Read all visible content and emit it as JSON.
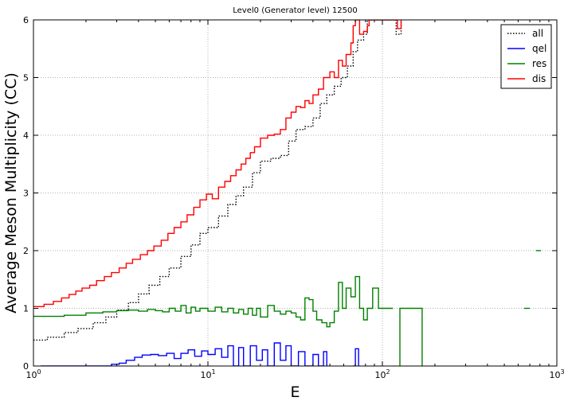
{
  "chart_data": {
    "type": "line",
    "title": "Level0 (Generator level) 12500",
    "xlabel": "E",
    "ylabel": "Average Meson Multiplicity (CC)",
    "xscale": "log",
    "xlim": [
      1,
      1000
    ],
    "ylim": [
      0,
      6
    ],
    "grid": true,
    "legend_position": "top-right",
    "x_ticks": [
      {
        "value": 1,
        "base": "10",
        "exp": "0"
      },
      {
        "value": 10,
        "base": "10",
        "exp": "1"
      },
      {
        "value": 100,
        "base": "10",
        "exp": "2"
      },
      {
        "value": 1000,
        "base": "10",
        "exp": "3"
      }
    ],
    "y_ticks": [
      0,
      1,
      2,
      3,
      4,
      5,
      6
    ],
    "series": [
      {
        "name": "all",
        "color": "#000000",
        "style": "dotted",
        "segments": [
          [
            [
              1.0,
              0.45
            ],
            [
              1.2,
              0.5
            ],
            [
              1.5,
              0.58
            ],
            [
              1.8,
              0.65
            ],
            [
              2.2,
              0.75
            ],
            [
              2.6,
              0.85
            ],
            [
              3.0,
              0.97
            ],
            [
              3.5,
              1.1
            ],
            [
              4.0,
              1.25
            ],
            [
              4.6,
              1.4
            ],
            [
              5.3,
              1.55
            ],
            [
              6.0,
              1.7
            ],
            [
              7.0,
              1.9
            ],
            [
              8.0,
              2.1
            ],
            [
              9.0,
              2.3
            ],
            [
              10.0,
              2.4
            ],
            [
              11.5,
              2.6
            ],
            [
              13.0,
              2.8
            ],
            [
              14.5,
              2.95
            ],
            [
              16.0,
              3.1
            ],
            [
              18.0,
              3.35
            ],
            [
              20.0,
              3.55
            ],
            [
              23.0,
              3.6
            ],
            [
              26.0,
              3.65
            ],
            [
              29.0,
              3.9
            ],
            [
              32.0,
              4.1
            ],
            [
              36.0,
              4.15
            ],
            [
              40.0,
              4.3
            ],
            [
              44.0,
              4.55
            ],
            [
              48.0,
              4.7
            ],
            [
              53.0,
              4.85
            ],
            [
              58.0,
              5.0
            ],
            [
              63.0,
              5.2
            ],
            [
              68.0,
              5.45
            ],
            [
              72.0,
              5.65
            ],
            [
              78.0,
              5.75
            ],
            [
              82.0,
              6.0
            ],
            [
              96.0,
              6.0
            ],
            [
              120.0,
              5.75
            ],
            [
              128.0,
              6.0
            ]
          ]
        ]
      },
      {
        "name": "qel",
        "color": "#0000ff",
        "style": "solid",
        "segments": [
          [
            [
              1.1,
              0.0
            ],
            [
              2.5,
              0.0
            ],
            [
              2.8,
              0.03
            ],
            [
              3.1,
              0.05
            ],
            [
              3.4,
              0.1
            ],
            [
              3.8,
              0.15
            ],
            [
              4.2,
              0.19
            ],
            [
              4.7,
              0.2
            ],
            [
              5.2,
              0.18
            ],
            [
              5.8,
              0.22
            ],
            [
              6.4,
              0.13
            ],
            [
              7.0,
              0.22
            ],
            [
              7.7,
              0.28
            ],
            [
              8.4,
              0.17
            ],
            [
              9.2,
              0.26
            ],
            [
              10.0,
              0.2
            ],
            [
              11.0,
              0.3
            ],
            [
              12.0,
              0.15
            ],
            [
              13.0,
              0.35
            ],
            [
              14.0,
              0.0
            ],
            [
              15.0,
              0.32
            ],
            [
              16.0,
              0.0
            ],
            [
              17.5,
              0.35
            ],
            [
              19.0,
              0.1
            ],
            [
              20.5,
              0.28
            ],
            [
              22.0,
              0.0
            ],
            [
              24.0,
              0.4
            ],
            [
              26.0,
              0.1
            ],
            [
              28.0,
              0.35
            ],
            [
              30.0,
              0.0
            ],
            [
              33.0,
              0.25
            ],
            [
              36.0,
              0.0
            ],
            [
              40.0,
              0.2
            ],
            [
              43.0,
              0.0
            ],
            [
              46.0,
              0.25
            ],
            [
              48.0,
              0.0
            ]
          ],
          [
            [
              68.0,
              0.0
            ],
            [
              70.0,
              0.3
            ],
            [
              73.0,
              0.0
            ]
          ]
        ]
      },
      {
        "name": "res",
        "color": "#008000",
        "style": "solid",
        "segments": [
          [
            [
              1.0,
              0.86
            ],
            [
              1.5,
              0.88
            ],
            [
              2.0,
              0.92
            ],
            [
              2.5,
              0.94
            ],
            [
              3.0,
              0.96
            ],
            [
              3.5,
              0.97
            ],
            [
              4.0,
              0.95
            ],
            [
              4.5,
              0.98
            ],
            [
              5.0,
              0.96
            ],
            [
              5.5,
              0.94
            ],
            [
              6.0,
              1.0
            ],
            [
              6.5,
              0.95
            ],
            [
              7.0,
              1.05
            ],
            [
              7.5,
              0.92
            ],
            [
              8.0,
              1.02
            ],
            [
              8.5,
              0.95
            ],
            [
              9.0,
              1.0
            ],
            [
              10.0,
              0.95
            ],
            [
              11.0,
              1.02
            ],
            [
              12.0,
              0.94
            ],
            [
              13.0,
              1.0
            ],
            [
              14.0,
              0.92
            ],
            [
              15.0,
              0.98
            ],
            [
              16.0,
              0.9
            ],
            [
              17.0,
              1.0
            ],
            [
              18.0,
              0.88
            ],
            [
              19.0,
              1.0
            ],
            [
              20.0,
              0.85
            ],
            [
              22.0,
              1.05
            ],
            [
              24.0,
              0.95
            ],
            [
              26.0,
              0.9
            ],
            [
              28.0,
              0.95
            ],
            [
              30.0,
              0.92
            ],
            [
              32.0,
              0.85
            ],
            [
              34.0,
              0.8
            ],
            [
              36.0,
              1.18
            ],
            [
              38.0,
              1.15
            ],
            [
              40.0,
              0.95
            ],
            [
              42.0,
              0.8
            ],
            [
              45.0,
              0.75
            ],
            [
              48.0,
              0.68
            ],
            [
              50.0,
              0.75
            ],
            [
              53.0,
              0.95
            ],
            [
              56.0,
              1.45
            ],
            [
              59.0,
              1.0
            ],
            [
              62.0,
              1.35
            ],
            [
              66.0,
              1.2
            ],
            [
              70.0,
              1.55
            ],
            [
              74.0,
              1.0
            ],
            [
              78.0,
              0.8
            ],
            [
              82.0,
              1.0
            ],
            [
              88.0,
              1.35
            ],
            [
              95.0,
              1.0
            ],
            [
              115.0,
              1.0
            ]
          ],
          [
            [
              125.0,
              0.0
            ],
            [
              126.0,
              1.0
            ],
            [
              168.0,
              1.0
            ],
            [
              169.0,
              0.0
            ]
          ],
          [
            [
              650.0,
              1.0
            ],
            [
              700.0,
              1.0
            ]
          ],
          [
            [
              760.0,
              2.0
            ],
            [
              810.0,
              2.0
            ]
          ]
        ]
      },
      {
        "name": "dis",
        "color": "#ff0000",
        "style": "solid",
        "segments": [
          [
            [
              1.0,
              1.03
            ],
            [
              1.15,
              1.07
            ],
            [
              1.3,
              1.12
            ],
            [
              1.45,
              1.18
            ],
            [
              1.6,
              1.24
            ],
            [
              1.75,
              1.3
            ],
            [
              1.9,
              1.35
            ],
            [
              2.1,
              1.4
            ],
            [
              2.3,
              1.48
            ],
            [
              2.55,
              1.55
            ],
            [
              2.8,
              1.62
            ],
            [
              3.1,
              1.7
            ],
            [
              3.4,
              1.78
            ],
            [
              3.7,
              1.85
            ],
            [
              4.1,
              1.93
            ],
            [
              4.5,
              2.0
            ],
            [
              4.9,
              2.08
            ],
            [
              5.4,
              2.18
            ],
            [
              5.9,
              2.3
            ],
            [
              6.4,
              2.4
            ],
            [
              7.0,
              2.5
            ],
            [
              7.6,
              2.62
            ],
            [
              8.3,
              2.75
            ],
            [
              9.0,
              2.88
            ],
            [
              9.8,
              2.98
            ],
            [
              10.6,
              2.9
            ],
            [
              11.5,
              3.1
            ],
            [
              12.5,
              3.2
            ],
            [
              13.5,
              3.3
            ],
            [
              14.5,
              3.4
            ],
            [
              15.5,
              3.5
            ],
            [
              16.5,
              3.6
            ],
            [
              17.5,
              3.7
            ],
            [
              18.5,
              3.8
            ],
            [
              20.0,
              3.95
            ],
            [
              22.0,
              4.0
            ],
            [
              24.0,
              4.02
            ],
            [
              26.0,
              4.1
            ],
            [
              28.0,
              4.3
            ],
            [
              30.0,
              4.4
            ],
            [
              32.0,
              4.5
            ],
            [
              34.0,
              4.48
            ],
            [
              36.0,
              4.6
            ],
            [
              38.0,
              4.55
            ],
            [
              40.0,
              4.7
            ],
            [
              43.0,
              4.8
            ],
            [
              46.0,
              5.0
            ],
            [
              50.0,
              5.1
            ],
            [
              53.0,
              5.0
            ],
            [
              56.0,
              5.3
            ],
            [
              59.0,
              5.2
            ],
            [
              62.0,
              5.4
            ],
            [
              66.0,
              5.6
            ],
            [
              68.0,
              5.9
            ],
            [
              70.0,
              6.0
            ],
            [
              74.0,
              5.75
            ],
            [
              78.0,
              5.8
            ],
            [
              82.0,
              5.9
            ],
            [
              84.0,
              6.0
            ],
            [
              118.0,
              6.0
            ],
            [
              122.0,
              5.85
            ],
            [
              128.0,
              6.0
            ]
          ]
        ]
      }
    ]
  }
}
